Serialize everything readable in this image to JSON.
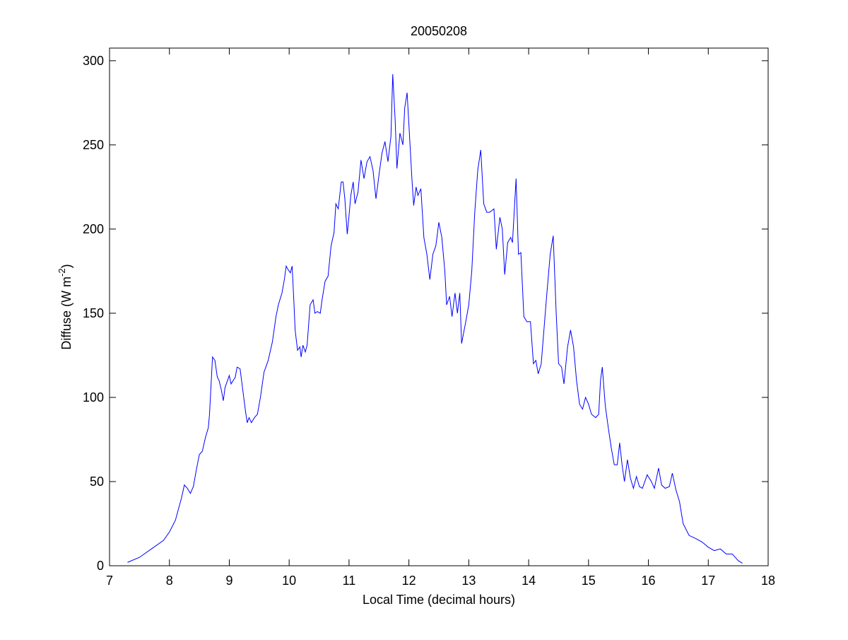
{
  "chart_data": {
    "type": "line",
    "title": "20050208",
    "xlabel": "Local Time (decimal hours)",
    "ylabel": [
      "Diffuse (W m",
      "-2",
      ")"
    ],
    "color": "#0000ff",
    "x": [
      7.3,
      7.5,
      7.7,
      7.9,
      8.0,
      8.1,
      8.2,
      8.25,
      8.3,
      8.35,
      8.4,
      8.45,
      8.5,
      8.55,
      8.6,
      8.65,
      8.67,
      8.72,
      8.76,
      8.8,
      8.83,
      8.87,
      8.9,
      8.93,
      8.97,
      9.0,
      9.03,
      9.1,
      9.13,
      9.18,
      9.22,
      9.27,
      9.3,
      9.33,
      9.37,
      9.42,
      9.47,
      9.52,
      9.58,
      9.65,
      9.72,
      9.78,
      9.82,
      9.88,
      9.92,
      9.95,
      9.98,
      10.02,
      10.05,
      10.08,
      10.1,
      10.14,
      10.18,
      10.2,
      10.23,
      10.27,
      10.3,
      10.35,
      10.4,
      10.43,
      10.47,
      10.52,
      10.55,
      10.6,
      10.65,
      10.7,
      10.75,
      10.78,
      10.82,
      10.87,
      10.9,
      10.93,
      10.97,
      11.0,
      11.03,
      11.07,
      11.1,
      11.15,
      11.2,
      11.25,
      11.3,
      11.35,
      11.4,
      11.45,
      11.5,
      11.55,
      11.6,
      11.65,
      11.7,
      11.73,
      11.77,
      11.8,
      11.85,
      11.9,
      11.93,
      11.97,
      12.0,
      12.05,
      12.08,
      12.12,
      12.15,
      12.2,
      12.25,
      12.3,
      12.35,
      12.4,
      12.45,
      12.5,
      12.55,
      12.6,
      12.63,
      12.68,
      12.72,
      12.77,
      12.81,
      12.85,
      12.88,
      12.95,
      13.0,
      13.05,
      13.1,
      13.15,
      13.2,
      13.25,
      13.3,
      13.35,
      13.42,
      13.46,
      13.52,
      13.56,
      13.6,
      13.65,
      13.7,
      13.73,
      13.79,
      13.83,
      13.87,
      13.92,
      13.97,
      14.03,
      14.08,
      14.12,
      14.16,
      14.21,
      14.3,
      14.36,
      14.41,
      14.46,
      14.5,
      14.55,
      14.59,
      14.65,
      14.7,
      14.75,
      14.8,
      14.85,
      14.9,
      14.95,
      15.0,
      15.05,
      15.12,
      15.17,
      15.2,
      15.23,
      15.28,
      15.33,
      15.38,
      15.43,
      15.48,
      15.52,
      15.56,
      15.6,
      15.65,
      15.7,
      15.75,
      15.8,
      15.85,
      15.9,
      15.98,
      16.05,
      16.1,
      16.17,
      16.22,
      16.28,
      16.35,
      16.4,
      16.46,
      16.52,
      16.58,
      16.68,
      16.8,
      16.9,
      17.0,
      17.1,
      17.2,
      17.3,
      17.4,
      17.5,
      17.57
    ],
    "values": [
      2,
      5,
      10,
      15,
      20,
      27,
      40,
      48,
      46,
      43,
      47,
      57,
      66,
      68,
      76,
      82,
      90,
      124,
      122,
      112,
      110,
      104,
      98,
      106,
      110,
      113,
      108,
      112,
      118,
      117,
      106,
      92,
      85,
      88,
      85,
      88,
      90,
      100,
      115,
      122,
      133,
      148,
      155,
      162,
      170,
      178,
      176,
      174,
      178,
      156,
      140,
      128,
      130,
      124,
      131,
      127,
      131,
      155,
      158,
      150,
      151,
      150,
      158,
      169,
      172,
      190,
      198,
      215,
      212,
      228,
      228,
      218,
      197,
      208,
      220,
      228,
      215,
      222,
      241,
      230,
      240,
      243,
      235,
      218,
      232,
      245,
      252,
      240,
      255,
      292,
      265,
      236,
      257,
      250,
      272,
      281,
      262,
      230,
      214,
      225,
      220,
      224,
      195,
      185,
      170,
      185,
      190,
      204,
      195,
      175,
      155,
      160,
      148,
      162,
      150,
      162,
      132,
      145,
      155,
      175,
      210,
      235,
      247,
      215,
      210,
      210,
      212,
      188,
      207,
      200,
      173,
      192,
      195,
      192,
      230,
      185,
      186,
      148,
      145,
      145,
      120,
      122,
      114,
      120,
      160,
      185,
      196,
      150,
      120,
      118,
      108,
      130,
      140,
      130,
      110,
      96,
      93,
      100,
      96,
      90,
      88,
      90,
      110,
      118,
      95,
      82,
      70,
      60,
      60,
      73,
      60,
      50,
      63,
      52,
      46,
      53,
      47,
      46,
      54,
      50,
      46,
      58,
      48,
      46,
      47,
      55,
      45,
      38,
      25,
      18,
      16,
      14,
      11,
      9,
      10,
      7,
      7,
      3,
      1.5
    ],
    "xlim": [
      7,
      18
    ],
    "xticks": [
      7,
      8,
      9,
      10,
      11,
      12,
      13,
      14,
      15,
      16,
      17,
      18
    ],
    "ylim": [
      0,
      307.5
    ],
    "yticks": [
      0,
      50,
      100,
      150,
      200,
      250,
      300
    ],
    "grid": false
  }
}
